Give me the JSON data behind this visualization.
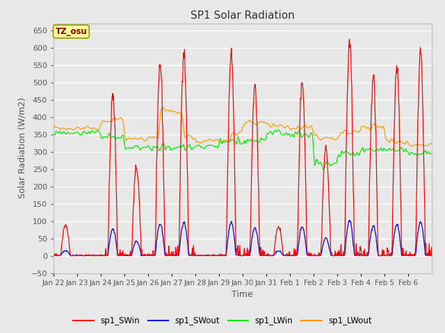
{
  "title": "SP1 Solar Radiation",
  "xlabel": "Time",
  "ylabel": "Solar Radiation (W/m2)",
  "ylim": [
    -50,
    670
  ],
  "annotation": "TZ_osu",
  "annotation_color": "#8b0000",
  "annotation_bg": "#ffff99",
  "annotation_border": "#999900",
  "fig_bg": "#e8e8e8",
  "plot_bg": "#e8e8e8",
  "grid_color": "#ffffff",
  "series": [
    "sp1_SWin",
    "sp1_SWout",
    "sp1_LWin",
    "sp1_LWout"
  ],
  "series_colors": [
    "#ff0000",
    "#0000dd",
    "#00ee00",
    "#ff9900"
  ],
  "yticks": [
    -50,
    0,
    50,
    100,
    150,
    200,
    250,
    300,
    350,
    400,
    450,
    500,
    550,
    600,
    650
  ],
  "xtick_labels": [
    "Jan 22",
    "Jan 23",
    "Jan 24",
    "Jan 25",
    "Jan 26",
    "Jan 27",
    "Jan 28",
    "Jan 29",
    "Jan 30",
    "Jan 31",
    "Feb 1",
    "Feb 2",
    "Feb 3",
    "Feb 4",
    "Feb 5",
    "Feb 6"
  ]
}
